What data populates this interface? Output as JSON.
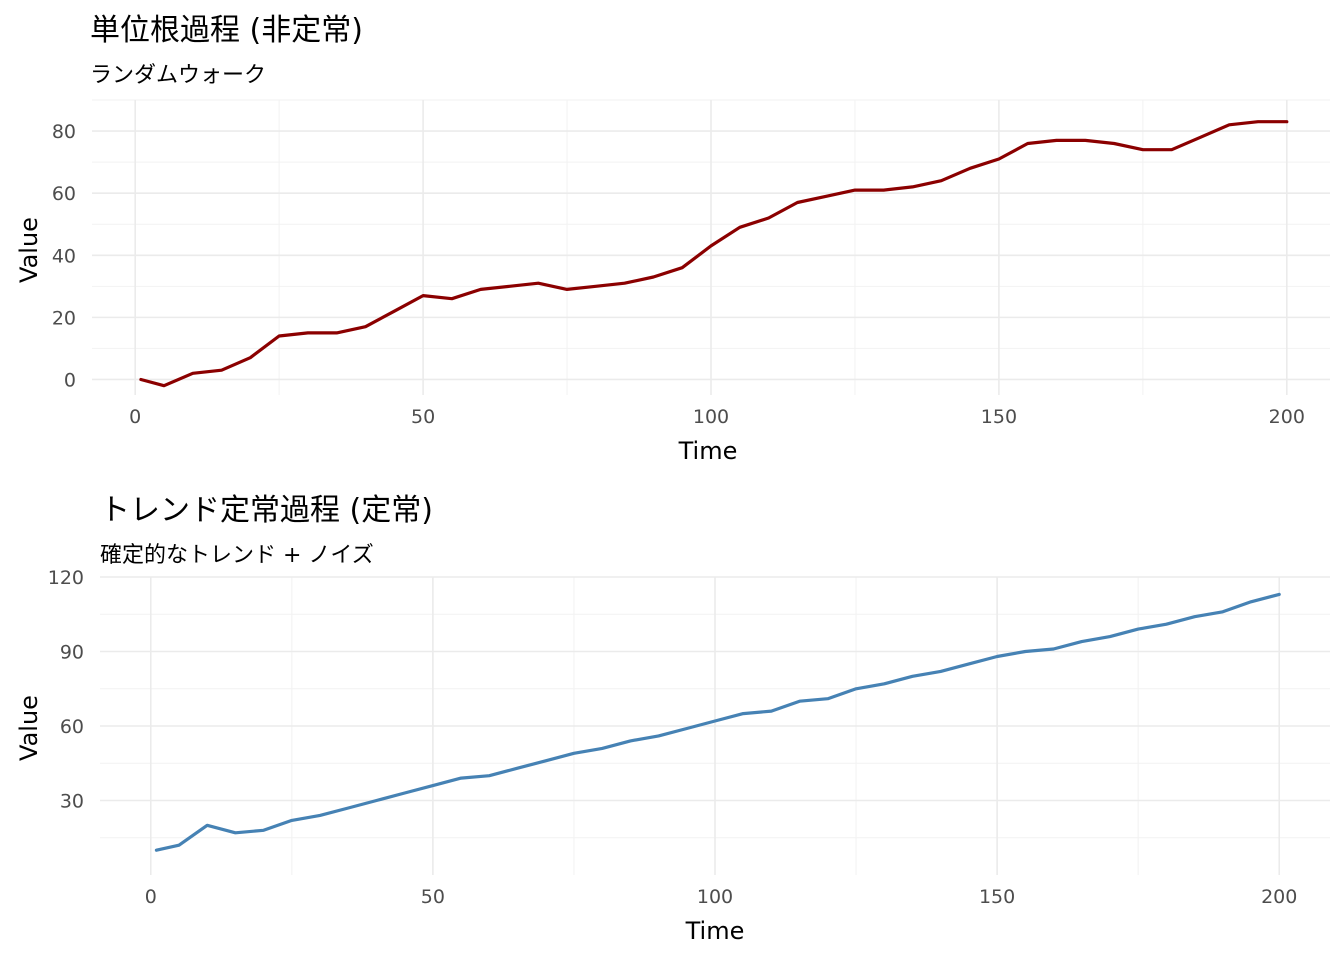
{
  "chart_data": [
    {
      "type": "line",
      "title": "単位根過程 (非定常)",
      "subtitle": "ランダムウォーク",
      "xlabel": "Time",
      "ylabel": "Value",
      "xlim": [
        -7.5,
        207.5
      ],
      "ylim": [
        -5,
        90
      ],
      "xticks": [
        0,
        50,
        100,
        150,
        200
      ],
      "yticks": [
        0,
        20,
        40,
        60,
        80
      ],
      "xtick_labels": [
        "0",
        "50",
        "100",
        "150",
        "200"
      ],
      "ytick_labels": [
        "0",
        "20",
        "40",
        "60",
        "80"
      ],
      "grid": true,
      "color": "#8B0000",
      "series": [
        {
          "x": [
            1,
            5,
            10,
            15,
            20,
            25,
            30,
            35,
            40,
            45,
            50,
            55,
            60,
            65,
            70,
            75,
            80,
            85,
            90,
            95,
            100,
            105,
            110,
            115,
            120,
            125,
            130,
            135,
            140,
            145,
            150,
            155,
            160,
            165,
            170,
            175,
            180,
            185,
            190,
            195,
            200
          ],
          "values": [
            0,
            -2,
            2,
            3,
            7,
            14,
            15,
            15,
            17,
            22,
            27,
            26,
            29,
            30,
            31,
            29,
            30,
            31,
            33,
            36,
            43,
            49,
            52,
            57,
            59,
            61,
            61,
            62,
            64,
            68,
            71,
            76,
            77,
            77,
            76,
            74,
            74,
            78,
            82,
            83,
            83
          ]
        }
      ]
    },
    {
      "type": "line",
      "title": "トレンド定常過程 (定常)",
      "subtitle": "確定的なトレンド + ノイズ",
      "xlabel": "Time",
      "ylabel": "Value",
      "xlim": [
        -9,
        209
      ],
      "ylim": [
        0,
        120
      ],
      "xticks": [
        0,
        50,
        100,
        150,
        200
      ],
      "yticks": [
        30,
        60,
        90,
        120
      ],
      "xtick_labels": [
        "0",
        "50",
        "100",
        "150",
        "200"
      ],
      "ytick_labels": [
        "30",
        "60",
        "90",
        "120"
      ],
      "grid": true,
      "color": "#4682B4",
      "series": [
        {
          "x": [
            1,
            5,
            10,
            15,
            20,
            25,
            30,
            35,
            40,
            45,
            50,
            55,
            60,
            65,
            70,
            75,
            80,
            85,
            90,
            95,
            100,
            105,
            110,
            115,
            120,
            125,
            130,
            135,
            140,
            145,
            150,
            155,
            160,
            165,
            170,
            175,
            180,
            185,
            190,
            195,
            200
          ],
          "values": [
            10,
            12,
            20,
            17,
            18,
            22,
            24,
            27,
            30,
            33,
            36,
            39,
            40,
            43,
            46,
            49,
            51,
            54,
            56,
            59,
            62,
            65,
            66,
            70,
            71,
            75,
            77,
            80,
            82,
            85,
            88,
            90,
            91,
            94,
            96,
            99,
            101,
            104,
            106,
            110,
            113
          ]
        }
      ]
    }
  ]
}
